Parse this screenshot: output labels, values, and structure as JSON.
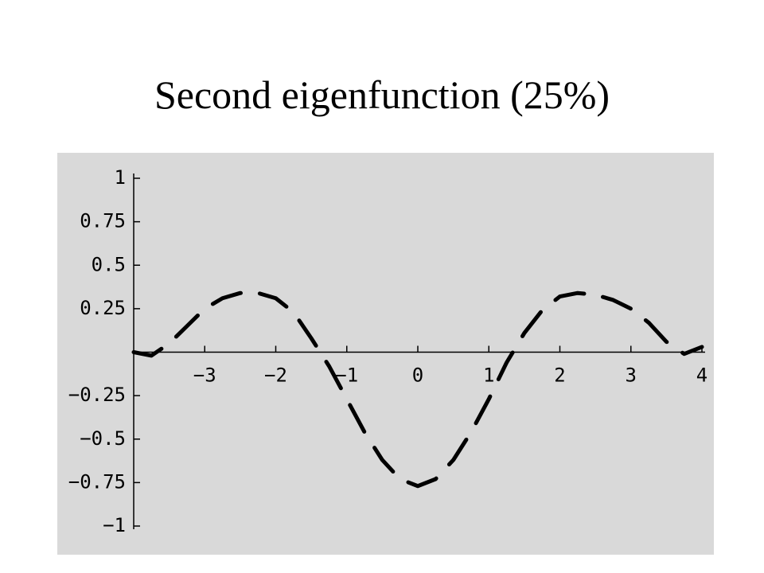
{
  "chart_data": {
    "type": "line",
    "title": "Second eigenfunction (25%)",
    "x": [
      -4,
      -3.75,
      -3.5,
      -3.25,
      -3,
      -2.75,
      -2.5,
      -2.25,
      -2,
      -1.75,
      -1.5,
      -1.25,
      -1,
      -0.75,
      -0.5,
      -0.25,
      0,
      0.25,
      0.5,
      0.75,
      1,
      1.25,
      1.5,
      1.75,
      2,
      2.25,
      2.5,
      2.75,
      3,
      3.25,
      3.5,
      3.75,
      4
    ],
    "series": [
      {
        "color": "#000000",
        "line_style": "dashed",
        "values": [
          0.0,
          -0.02,
          0.05,
          0.15,
          0.25,
          0.31,
          0.34,
          0.34,
          0.31,
          0.23,
          0.08,
          -0.08,
          -0.27,
          -0.46,
          -0.62,
          -0.73,
          -0.77,
          -0.73,
          -0.62,
          -0.46,
          -0.27,
          -0.06,
          0.11,
          0.24,
          0.32,
          0.34,
          0.33,
          0.3,
          0.25,
          0.17,
          0.06,
          -0.01,
          0.03
        ]
      }
    ],
    "xlim": [
      -4,
      4
    ],
    "ylim": [
      -1,
      1
    ],
    "xticks": [
      {
        "value": -3,
        "label": "−3"
      },
      {
        "value": -2,
        "label": "−2"
      },
      {
        "value": -1,
        "label": "−1"
      },
      0,
      1,
      2,
      3,
      4
    ],
    "yticks": [
      {
        "value": -1,
        "label": "−1"
      },
      {
        "value": -0.75,
        "label": "−0.75"
      },
      {
        "value": -0.5,
        "label": "−0.5"
      },
      {
        "value": -0.25,
        "label": "−0.25"
      },
      0.25,
      0.5,
      0.75,
      1
    ],
    "background": "#d9d9d9"
  }
}
